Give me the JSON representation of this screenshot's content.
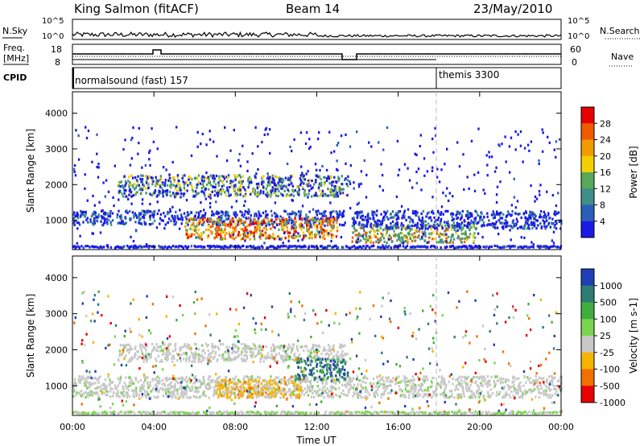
{
  "header": {
    "station": "King Salmon (fitACF)",
    "beam": "Beam 14",
    "date": "23/May/2010"
  },
  "noise_panel": {
    "left_label": "N.Sky",
    "right_label": "N.Search",
    "ticks": [
      "10^5",
      "10^0"
    ]
  },
  "freq_panel": {
    "left_label_1": "Freq.",
    "left_label_2": "[MHz]",
    "left_ticks": [
      "18",
      "8"
    ],
    "right_ticks": [
      "60",
      "0"
    ],
    "right_label": "Nave"
  },
  "cpid_panel": {
    "label": "CPID",
    "modes": [
      {
        "name": "normalsound (fast) 157",
        "start_hour": 0
      },
      {
        "name": "themis 3300",
        "start_hour": 18
      }
    ]
  },
  "chart_data": [
    {
      "type": "heatmap",
      "title": "",
      "xlabel": "Time UT",
      "ylabel": "Slant Range [km]",
      "xlim": [
        0,
        24
      ],
      "ylim": [
        180,
        4600
      ],
      "x_ticks": [
        "00:00",
        "04:00",
        "08:00",
        "12:00",
        "16:00",
        "20:00",
        "00:00"
      ],
      "y_ticks": [
        "1000",
        "2000",
        "3000",
        "4000"
      ],
      "colorbar": {
        "label": "Power [dB]",
        "ticks": [
          "4",
          "8",
          "12",
          "16",
          "20",
          "24",
          "28"
        ],
        "colors": [
          "#1a1ae6",
          "#2a5fb8",
          "#3f8e8a",
          "#58a85a",
          "#f2d000",
          "#f29a00",
          "#f05a00",
          "#e60000"
        ]
      },
      "echo_regions": [
        {
          "t_start": 0.0,
          "t_end": 13.5,
          "range_start": 900,
          "range_end": 1300,
          "level": "low"
        },
        {
          "t_start": 2.2,
          "t_end": 13.5,
          "range_start": 1700,
          "range_end": 2300,
          "level": "mid"
        },
        {
          "t_start": 5.5,
          "t_end": 13.0,
          "range_start": 500,
          "range_end": 1100,
          "level": "high"
        },
        {
          "t_start": 13.7,
          "t_end": 19.8,
          "range_start": 400,
          "range_end": 900,
          "level": "mid-high"
        },
        {
          "t_start": 13.7,
          "t_end": 24.0,
          "range_start": 800,
          "range_end": 1300,
          "level": "low"
        }
      ]
    },
    {
      "type": "heatmap",
      "title": "",
      "xlabel": "Time UT",
      "ylabel": "Slant Range [km]",
      "xlim": [
        0,
        24
      ],
      "ylim": [
        180,
        4600
      ],
      "x_ticks": [
        "00:00",
        "04:00",
        "08:00",
        "12:00",
        "16:00",
        "20:00",
        "00:00"
      ],
      "y_ticks": [
        "1000",
        "2000",
        "3000",
        "4000"
      ],
      "colorbar": {
        "label": "Velocity [m s-1]",
        "ticks": [
          "1000",
          "500",
          "100",
          "25",
          "-25",
          "-100",
          "-500",
          "-1000"
        ],
        "colors": [
          "#1f3fb4",
          "#2e7d74",
          "#3fae3f",
          "#7bd44f",
          "#c8c8c8",
          "#f5b400",
          "#f07000",
          "#e60000"
        ]
      },
      "echo_regions": [
        {
          "t_start": 0.0,
          "t_end": 24.0,
          "range_start": 700,
          "range_end": 1300,
          "velocity": "near zero"
        },
        {
          "t_start": 2.2,
          "t_end": 13.5,
          "range_start": 1700,
          "range_end": 2200,
          "velocity": "near zero"
        },
        {
          "t_start": 7.0,
          "t_end": 11.2,
          "range_start": 700,
          "range_end": 1200,
          "velocity": "-100"
        },
        {
          "t_start": 11.0,
          "t_end": 13.5,
          "range_start": 1200,
          "range_end": 1800,
          "velocity": "500"
        }
      ]
    }
  ],
  "colors": {
    "power_low": "#1a1ae6",
    "power_high": "#e60000",
    "ground_scatter": "#c8c8c8"
  }
}
